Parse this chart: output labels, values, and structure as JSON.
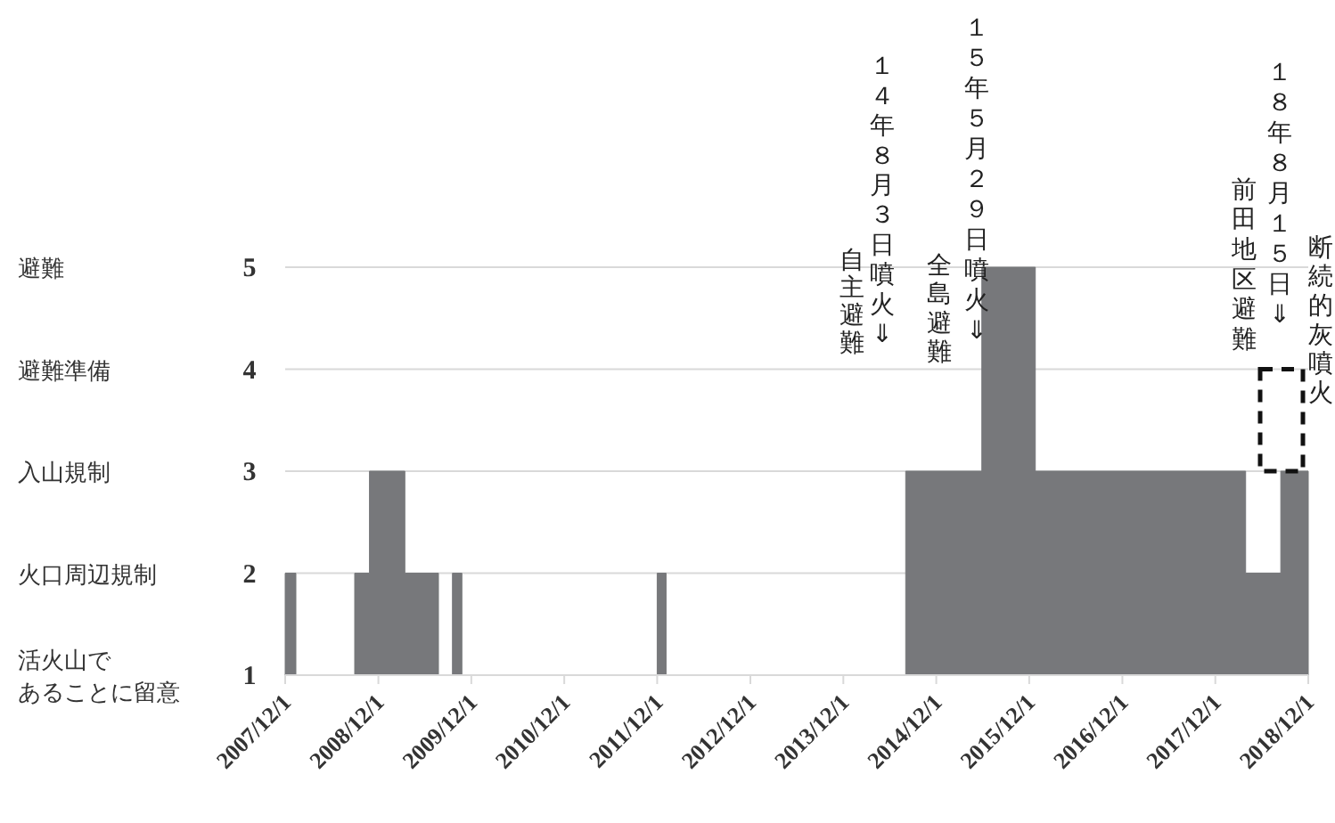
{
  "chart_data": {
    "type": "area",
    "x": [
      "2007-12-01",
      "2008-01-12",
      "2008-01-12",
      "2008-08-30",
      "2008-08-30",
      "2008-10-27",
      "2008-10-27",
      "2009-03-15",
      "2009-03-15",
      "2009-07-25",
      "2009-07-25",
      "2009-09-18",
      "2009-09-18",
      "2009-10-25",
      "2009-10-25",
      "2011-12-01",
      "2011-12-01",
      "2012-01-05",
      "2012-01-05",
      "2014-08-03",
      "2014-08-03",
      "2015-05-29",
      "2015-05-29",
      "2015-12-25",
      "2015-12-25",
      "2018-03-30",
      "2018-03-30",
      "2018-08-15",
      "2018-08-15",
      "2018-12-01"
    ],
    "values": [
      2,
      2,
      1,
      1,
      2,
      2,
      3,
      3,
      2,
      2,
      1,
      1,
      2,
      2,
      1,
      1,
      2,
      2,
      1,
      1,
      3,
      3,
      5,
      5,
      3,
      3,
      2,
      2,
      3,
      3
    ],
    "color": "#77787b",
    "xlim": [
      "2007-12-01",
      "2018-12-01"
    ],
    "xticks": [
      {
        "value": "2007-12-01",
        "label": "2007/12/1"
      },
      {
        "value": "2008-12-01",
        "label": "2008/12/1"
      },
      {
        "value": "2009-12-01",
        "label": "2009/12/1"
      },
      {
        "value": "2010-12-01",
        "label": "2010/12/1"
      },
      {
        "value": "2011-12-01",
        "label": "2011/12/1"
      },
      {
        "value": "2012-12-01",
        "label": "2012/12/1"
      },
      {
        "value": "2013-12-01",
        "label": "2013/12/1"
      },
      {
        "value": "2014-12-01",
        "label": "2014/12/1"
      },
      {
        "value": "2015-12-01",
        "label": "2015/12/1"
      },
      {
        "value": "2016-12-01",
        "label": "2016/12/1"
      },
      {
        "value": "2017-12-01",
        "label": "2017/12/1"
      },
      {
        "value": "2018-12-01",
        "label": "2018/12/1"
      }
    ],
    "ylim": [
      1,
      5
    ],
    "yticks": [
      1,
      2,
      3,
      4,
      5
    ],
    "grid": "y",
    "annotations": [
      "避難",
      "避難準備",
      "入山規制",
      "火口周辺規制",
      "活火山であることに留意",
      "自主避難",
      "１４年８月３日噴火⇓",
      "全島避難",
      "１５年５月２９日噴火⇓",
      "前田地区避難",
      "１８年８月１５日⇓",
      "断続的灰噴火"
    ]
  }
}
